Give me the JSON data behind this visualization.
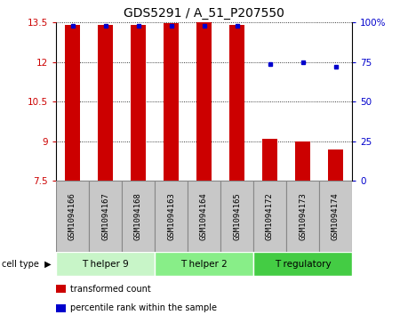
{
  "title": "GDS5291 / A_51_P207550",
  "samples": [
    "GSM1094166",
    "GSM1094167",
    "GSM1094168",
    "GSM1094163",
    "GSM1094164",
    "GSM1094165",
    "GSM1094172",
    "GSM1094173",
    "GSM1094174"
  ],
  "transformed_counts": [
    13.4,
    13.4,
    13.4,
    13.48,
    13.5,
    13.4,
    9.1,
    9.0,
    8.7
  ],
  "percentile_ranks": [
    98,
    98,
    98,
    98,
    98,
    98,
    74,
    75,
    72
  ],
  "ylim_left": [
    7.5,
    13.5
  ],
  "ylim_right": [
    0,
    100
  ],
  "yticks_left": [
    7.5,
    9.0,
    10.5,
    12.0,
    13.5
  ],
  "yticks_right": [
    0,
    25,
    50,
    75,
    100
  ],
  "ytick_labels_left": [
    "7.5",
    "9",
    "10.5",
    "12",
    "13.5"
  ],
  "ytick_labels_right": [
    "0",
    "25",
    "50",
    "75",
    "100%"
  ],
  "bar_bottom": 7.5,
  "bar_color": "#cc0000",
  "dot_color": "#0000cc",
  "cell_types": [
    {
      "label": "T helper 9",
      "start": 0,
      "end": 3,
      "color": "#c8f5c8"
    },
    {
      "label": "T helper 2",
      "start": 3,
      "end": 6,
      "color": "#88ee88"
    },
    {
      "label": "T regulatory",
      "start": 6,
      "end": 9,
      "color": "#44cc44"
    }
  ],
  "cell_type_label": "cell type",
  "legend_items": [
    {
      "color": "#cc0000",
      "label": "transformed count"
    },
    {
      "color": "#0000cc",
      "label": "percentile rank within the sample"
    }
  ],
  "bar_width": 0.45,
  "title_fontsize": 10,
  "tick_fontsize": 7.5,
  "label_fontsize": 6.5,
  "left_tick_color": "#cc0000",
  "right_tick_color": "#0000cc",
  "sample_box_color": "#c8c8c8",
  "sample_box_edge": "#888888"
}
